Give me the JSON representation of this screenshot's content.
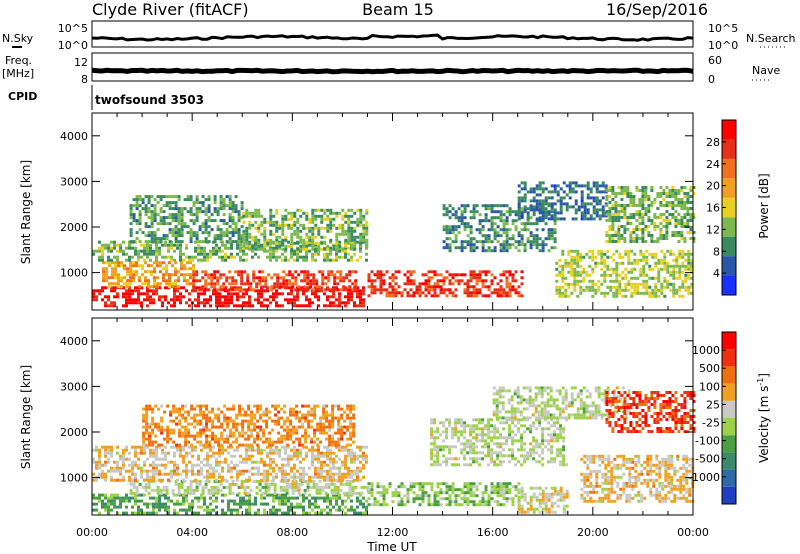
{
  "header": {
    "station": "Clyde River (fitACF)",
    "beam": "Beam 15",
    "date": "16/Sep/2016"
  },
  "strips": {
    "nsky_label": "N.Sky",
    "nsearch_label": "N.Search",
    "freq_label": "Freq.",
    "freq_unit": "[MHz]",
    "nave_label": "Nave",
    "cpid_label": "CPID",
    "cpid_value": "twofsound 3503",
    "nsky_ticks": [
      "10^5",
      "10^0"
    ],
    "nsearch_ticks": [
      "10^5",
      "10^0"
    ],
    "freq_ticks": [
      "12",
      "8"
    ],
    "nave_ticks": [
      "60",
      "0"
    ]
  },
  "axes": {
    "xlabel": "Time UT",
    "ylabel": "Slant Range [km]",
    "x_ticks": [
      "00:00",
      "04:00",
      "08:00",
      "12:00",
      "16:00",
      "20:00",
      "00:00"
    ],
    "y_ticks": [
      "1000",
      "2000",
      "3000",
      "4000"
    ]
  },
  "colorbars": {
    "power": {
      "label": "Power [dB]",
      "ticks": [
        "4",
        "8",
        "12",
        "16",
        "20",
        "24",
        "28"
      ],
      "colors": [
        "#1a30ff",
        "#2a57a8",
        "#3a8a60",
        "#7bb84d",
        "#e8d020",
        "#f0a020",
        "#f07020",
        "#e83018",
        "#ff0000"
      ]
    },
    "velocity": {
      "label": "Velocity [m s",
      "label_exp": "-1",
      "label_end": "]",
      "ticks": [
        "1000",
        "500",
        "100",
        "25",
        "-25",
        "-100",
        "-500",
        "-1000"
      ],
      "colors": [
        "#1f3fc0",
        "#2e6aa8",
        "#3c8a6a",
        "#4aa040",
        "#9cd24a",
        "#c8c8c4",
        "#f0a020",
        "#f07010",
        "#f03010",
        "#ff0000"
      ]
    }
  },
  "chart_data": [
    {
      "type": "heatmap",
      "title": "Power",
      "x_range_hours": [
        0,
        24
      ],
      "ylim": [
        180,
        4500
      ],
      "colorbar_range": [
        0,
        32
      ],
      "regions": [
        {
          "t": [
            0.0,
            10.9
          ],
          "r": [
            300,
            700
          ],
          "value": 30
        },
        {
          "t": [
            0.4,
            4.0
          ],
          "r": [
            700,
            1250
          ],
          "value": 20
        },
        {
          "t": [
            4.0,
            10.5
          ],
          "r": [
            650,
            1050
          ],
          "value": 26
        },
        {
          "t": [
            0.0,
            11.0
          ],
          "r": [
            1250,
            1700
          ],
          "value": 12
        },
        {
          "t": [
            1.5,
            6.0
          ],
          "r": [
            1700,
            2700
          ],
          "value": 10
        },
        {
          "t": [
            6.0,
            11.0
          ],
          "r": [
            1500,
            2400
          ],
          "value": 12
        },
        {
          "t": [
            11.0,
            17.2
          ],
          "r": [
            500,
            1050
          ],
          "value": 27
        },
        {
          "t": [
            14.0,
            18.5
          ],
          "r": [
            1500,
            2500
          ],
          "value": 9
        },
        {
          "t": [
            17.0,
            20.5
          ],
          "r": [
            2200,
            3000
          ],
          "value": 7
        },
        {
          "t": [
            18.5,
            24.0
          ],
          "r": [
            500,
            1500
          ],
          "value": 14
        },
        {
          "t": [
            20.5,
            24.0
          ],
          "r": [
            1700,
            2900
          ],
          "value": 12
        }
      ]
    },
    {
      "type": "heatmap",
      "title": "Velocity",
      "x_range_hours": [
        0,
        24
      ],
      "ylim": [
        180,
        4500
      ],
      "colorbar_range": [
        -1000,
        1000
      ],
      "regions": [
        {
          "t": [
            0.0,
            11.0
          ],
          "r": [
            250,
            650
          ],
          "value": -300
        },
        {
          "t": [
            1.5,
            11.0
          ],
          "r": [
            650,
            950
          ],
          "value": 0
        },
        {
          "t": [
            0.0,
            11.0
          ],
          "r": [
            950,
            1700
          ],
          "value": 200
        },
        {
          "t": [
            2.0,
            10.5
          ],
          "r": [
            1700,
            2600
          ],
          "value": 400
        },
        {
          "t": [
            11.0,
            17.0
          ],
          "r": [
            400,
            900
          ],
          "value": -150
        },
        {
          "t": [
            13.5,
            19.0
          ],
          "r": [
            1300,
            2300
          ],
          "value": 0
        },
        {
          "t": [
            16.0,
            21.5
          ],
          "r": [
            2300,
            3000
          ],
          "value": 0
        },
        {
          "t": [
            17.0,
            19.0
          ],
          "r": [
            250,
            800
          ],
          "value": 100
        },
        {
          "t": [
            20.5,
            24.0
          ],
          "r": [
            2000,
            2900
          ],
          "value": 700
        },
        {
          "t": [
            19.5,
            24.0
          ],
          "r": [
            500,
            1500
          ],
          "value": 200
        }
      ]
    }
  ]
}
